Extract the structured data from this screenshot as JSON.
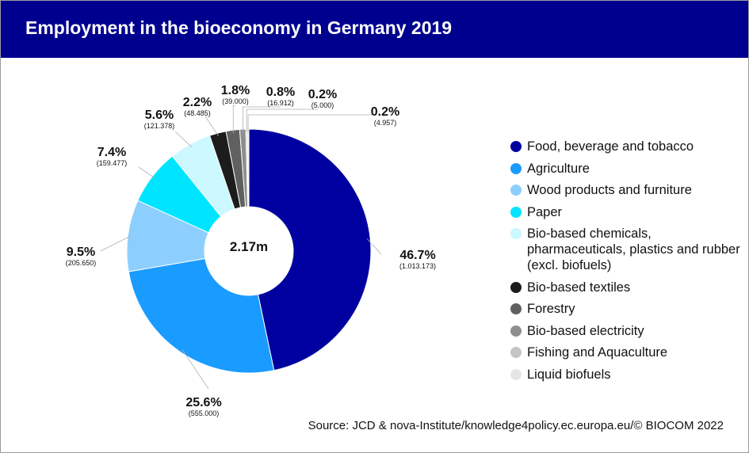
{
  "title": "Employment in the bioeconomy in Germany 2019",
  "source": "Source: JCD & nova-Institute/knowledge4policy.ec.europa.eu/© BIOCOM 2022",
  "chart_data": {
    "type": "pie",
    "donut": true,
    "center_label": "2.17m",
    "legend_position": "right",
    "slices": [
      {
        "name": "Food, beverage and tobacco",
        "percent": 46.7,
        "pct_label": "46.7%",
        "value_label": "(1.013.173)",
        "color": "#0000a0"
      },
      {
        "name": "Agriculture",
        "percent": 25.6,
        "pct_label": "25.6%",
        "value_label": "(555.000)",
        "color": "#1a9bff"
      },
      {
        "name": "Wood products and furniture",
        "percent": 9.5,
        "pct_label": "9.5%",
        "value_label": "(205.650)",
        "color": "#8ccfff"
      },
      {
        "name": "Paper",
        "percent": 7.4,
        "pct_label": "7.4%",
        "value_label": "(159.477)",
        "color": "#00e5ff"
      },
      {
        "name": "Bio-based chemicals, pharmaceuticals, plastics and rubber (excl. biofuels)",
        "percent": 5.6,
        "pct_label": "5.6%",
        "value_label": "(121.378)",
        "color": "#ccf8ff"
      },
      {
        "name": "Bio-based textiles",
        "percent": 2.2,
        "pct_label": "2.2%",
        "value_label": "(48.485)",
        "color": "#1c1c1c"
      },
      {
        "name": "Forestry",
        "percent": 1.8,
        "pct_label": "1.8%",
        "value_label": "(39.000)",
        "color": "#606060"
      },
      {
        "name": "Bio-based electricity",
        "percent": 0.8,
        "pct_label": "0.8%",
        "value_label": "(16.912)",
        "color": "#8e8e8e"
      },
      {
        "name": "Fishing and Aquaculture",
        "percent": 0.2,
        "pct_label": "0.2%",
        "value_label": "(5.000)",
        "color": "#c4c4c4"
      },
      {
        "name": "Liquid biofuels",
        "percent": 0.2,
        "pct_label": "0.2%",
        "value_label": "(4.957)",
        "color": "#e6e6e6"
      }
    ]
  }
}
